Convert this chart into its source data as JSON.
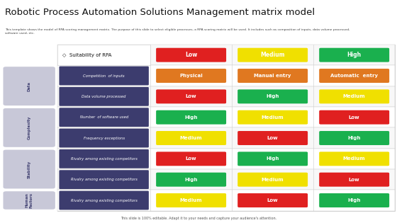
{
  "title": "Robotic Process Automation Solutions Management matrix model",
  "subtitle": "This template shows the model of RPA scoring management matrix. The purpose of this slide to select eligible processes, a RPA scoring matrix will be used. It includes such as composition of inputs, data volume processed,\nsoftware used, etc.",
  "footer": "This slide is 100% editable. Adapt it to your needs and capture your audience's attention.",
  "header_label": "Suitability of RPA",
  "header_cells": [
    "Low",
    "Medium",
    "High"
  ],
  "header_colors": [
    "#e02020",
    "#f0e000",
    "#1ab04e"
  ],
  "category_labels": [
    "Data",
    "Complexity",
    "Stability",
    "Human\nFactors"
  ],
  "category_spans": [
    2,
    2,
    2,
    1
  ],
  "row_labels": [
    "Competition  of inputs",
    "Data volume processed",
    "Number  of software used",
    "Frequency exceptions",
    "Rivalry among existing competitors",
    "Rivalry among existing competitors",
    "Rivalry among existing competitors"
  ],
  "matrix": [
    [
      "Physical",
      "Manual entry",
      "Automatic  entry"
    ],
    [
      "Low",
      "High",
      "Medium"
    ],
    [
      "High",
      "Medium",
      "Low"
    ],
    [
      "Medium",
      "Low",
      "High"
    ],
    [
      "Low",
      "High",
      "Medium"
    ],
    [
      "High",
      "Medium",
      "Low"
    ],
    [
      "Medium",
      "Low",
      "High"
    ]
  ],
  "cell_colors": [
    [
      "#e07820",
      "#e07820",
      "#e07820"
    ],
    [
      "#e02020",
      "#1ab04e",
      "#f0e000"
    ],
    [
      "#1ab04e",
      "#f0e000",
      "#e02020"
    ],
    [
      "#f0e000",
      "#e02020",
      "#1ab04e"
    ],
    [
      "#e02020",
      "#1ab04e",
      "#f0e000"
    ],
    [
      "#1ab04e",
      "#f0e000",
      "#e02020"
    ],
    [
      "#f0e000",
      "#e02020",
      "#1ab04e"
    ]
  ],
  "bg_color": "#ffffff",
  "sidebar_color": "#3c3c6e",
  "cat_box_color": "#c8c8d8",
  "cat_text_color": "#3c3c6e",
  "table_border_color": "#cccccc",
  "row_alt_colors": [
    "#f8f8f8",
    "#ffffff"
  ]
}
